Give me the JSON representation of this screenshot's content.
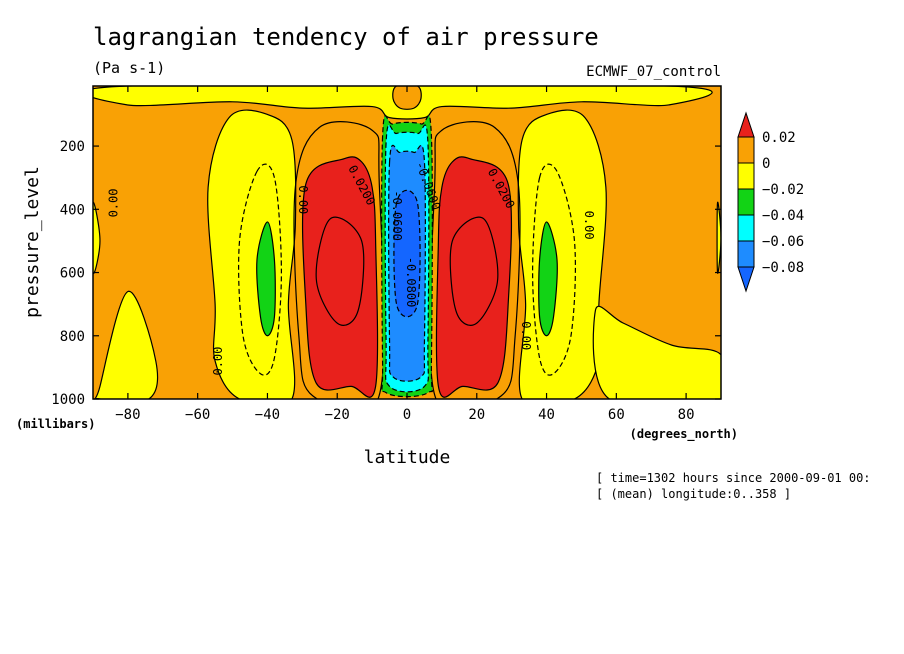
{
  "chart_data": {
    "type": "heatmap",
    "title": "lagrangian tendency of air pressure",
    "units_label": "(Pa s-1)",
    "dataset_label": "ECMWF_07_control",
    "xlabel": "latitude",
    "xunits": "(degrees_north)",
    "ylabel": "pressure_level",
    "yunits": "(millibars)",
    "xlim": [
      -90,
      90
    ],
    "ylim": [
      1000,
      10
    ],
    "x_ticks": [
      -80,
      -60,
      -40,
      -20,
      0,
      20,
      40,
      60,
      80
    ],
    "y_ticks": [
      200,
      400,
      600,
      800,
      1000
    ],
    "colorbar": {
      "levels": [
        "0.02",
        "0",
        "-0.02",
        "-0.04",
        "-0.06",
        "-0.08"
      ],
      "colors": [
        "#e8211c",
        "#f9a105",
        "#ffff00",
        "#12d315",
        "#00ffff",
        "#1e8cff",
        "#1466ff"
      ]
    },
    "contour_labels": [
      {
        "text": "0.00",
        "lat": -83,
        "p": 380,
        "angle": -90
      },
      {
        "text": "0.00",
        "lat": -31,
        "p": 370,
        "angle": 90
      },
      {
        "text": "0.00",
        "lat": -53,
        "p": 880,
        "angle": -90
      },
      {
        "text": "0.0200",
        "lat": -14,
        "p": 330,
        "angle": 62
      },
      {
        "text": "-0.0800",
        "lat": 0,
        "p": 630,
        "angle": 90
      },
      {
        "text": "-0.0600",
        "lat": -4,
        "p": 420,
        "angle": 90
      },
      {
        "text": "-0.0600",
        "lat": 5,
        "p": 330,
        "angle": 70
      },
      {
        "text": "0.0200",
        "lat": 26,
        "p": 340,
        "angle": 62
      },
      {
        "text": "0.00",
        "lat": 51,
        "p": 450,
        "angle": 90
      },
      {
        "text": "0.00",
        "lat": 33,
        "p": 800,
        "angle": 90
      }
    ]
  },
  "footer": {
    "time_note": "[ time=1302 hours since 2000-09-01 00:",
    "lon_note": "[ (mean) longitude:0..358 ]"
  }
}
